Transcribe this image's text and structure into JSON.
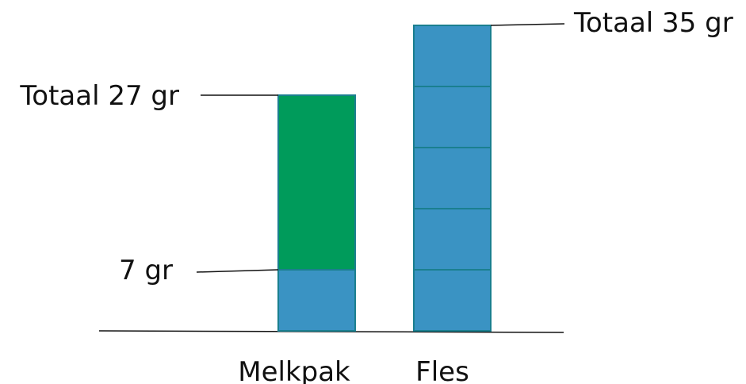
{
  "chart_data": {
    "type": "bar",
    "title": "",
    "xlabel": "",
    "ylabel": "",
    "ylim": [
      0,
      35
    ],
    "grid": false,
    "legend": "none",
    "categories": [
      "Melkpak",
      "Fles"
    ],
    "bars": [
      {
        "category": "Melkpak",
        "segments": [
          {
            "value": 7,
            "color": "#3a93c3"
          },
          {
            "value": 20,
            "color": "#009b5b"
          }
        ]
      },
      {
        "category": "Fles",
        "segments": [
          {
            "value": 7,
            "color": "#3a93c3"
          },
          {
            "value": 7,
            "color": "#3a93c3"
          },
          {
            "value": 7,
            "color": "#3a93c3"
          },
          {
            "value": 7,
            "color": "#3a93c3"
          },
          {
            "value": 7,
            "color": "#3a93c3"
          }
        ]
      }
    ],
    "annotations": [
      {
        "text": "Totaal 27 gr",
        "value": 27,
        "bar": 0,
        "side": "left"
      },
      {
        "text": "7 gr",
        "value": 7,
        "bar": 0,
        "side": "left"
      },
      {
        "text": "Totaal 35 gr",
        "value": 35,
        "bar": 1,
        "side": "right"
      }
    ],
    "divider_color": "#1a7f8f"
  }
}
